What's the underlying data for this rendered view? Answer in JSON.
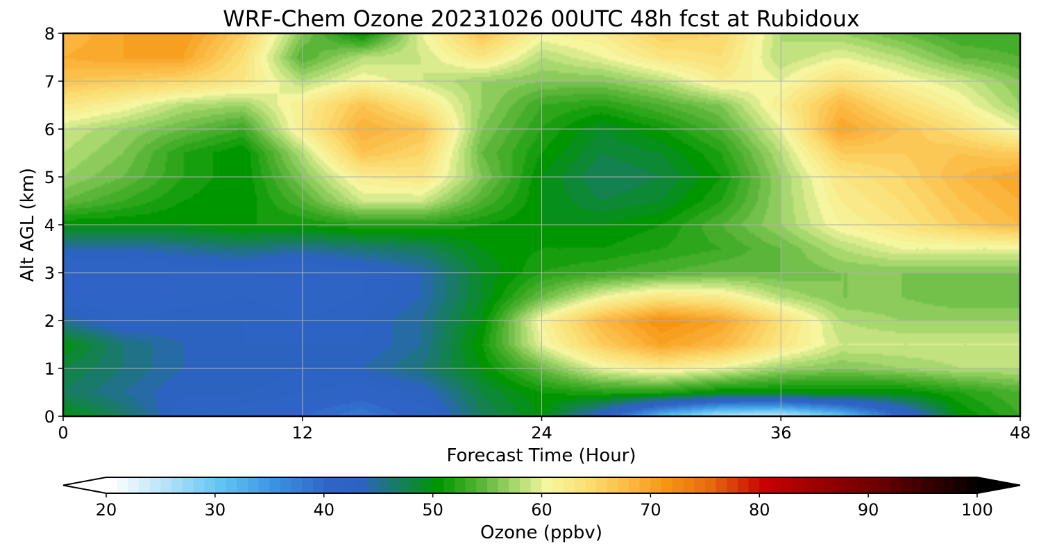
{
  "chart_data": {
    "type": "heatmap",
    "title": "WRF-Chem Ozone  20231026 00UTC 48h fcst at Rubidoux",
    "xlabel": "Forecast Time (Hour)",
    "ylabel": "Alt AGL (km)",
    "xlim": [
      0,
      48
    ],
    "ylim": [
      0,
      8
    ],
    "x_ticks": [
      0,
      12,
      24,
      36,
      48
    ],
    "y_ticks": [
      0,
      1,
      2,
      3,
      4,
      5,
      6,
      7,
      8
    ],
    "grid": true,
    "colorbar": {
      "label": "Ozone  (ppbv)",
      "min": 20,
      "max": 100,
      "ticks": [
        20,
        30,
        40,
        50,
        60,
        70,
        80,
        90,
        100
      ],
      "extend": "both",
      "colors": [
        {
          "value": 20,
          "color": "#ffffff"
        },
        {
          "value": 25,
          "color": "#b4e2f8"
        },
        {
          "value": 30,
          "color": "#63c4f4"
        },
        {
          "value": 35,
          "color": "#3c92e0"
        },
        {
          "value": 40,
          "color": "#2f64c6"
        },
        {
          "value": 43,
          "color": "#2c63c0"
        },
        {
          "value": 46,
          "color": "#1a7a6a"
        },
        {
          "value": 50,
          "color": "#009600"
        },
        {
          "value": 54,
          "color": "#5ab538"
        },
        {
          "value": 57,
          "color": "#a6d86e"
        },
        {
          "value": 60,
          "color": "#f6f6a0"
        },
        {
          "value": 64,
          "color": "#fbdc70"
        },
        {
          "value": 68,
          "color": "#fbb43c"
        },
        {
          "value": 71,
          "color": "#f59510"
        },
        {
          "value": 75,
          "color": "#e66a10"
        },
        {
          "value": 80,
          "color": "#c80000"
        },
        {
          "value": 90,
          "color": "#6e0000"
        },
        {
          "value": 100,
          "color": "#000000"
        }
      ]
    },
    "x": [
      0,
      3,
      6,
      9,
      12,
      15,
      18,
      21,
      24,
      27,
      30,
      33,
      36,
      39,
      42,
      45,
      48
    ],
    "y": [
      0,
      0.5,
      1,
      1.5,
      2,
      2.5,
      3,
      3.5,
      4,
      4.5,
      5,
      5.5,
      6,
      6.5,
      7,
      7.5,
      8
    ],
    "values": [
      [
        50,
        47,
        42,
        41,
        40,
        38,
        41,
        47,
        50,
        42,
        31,
        25,
        24,
        30,
        40,
        50,
        53
      ],
      [
        47,
        45,
        43,
        43,
        42,
        41,
        43,
        48,
        51,
        52,
        52,
        50,
        50,
        50,
        50,
        52,
        54
      ],
      [
        48,
        46,
        44,
        44,
        43,
        44,
        46,
        50,
        55,
        60,
        62,
        60,
        57,
        56,
        57,
        58,
        58
      ],
      [
        50,
        46,
        44,
        43,
        43,
        43,
        45,
        51,
        60,
        66,
        70,
        68,
        63,
        59,
        59,
        59,
        59
      ],
      [
        45,
        42,
        43,
        43,
        42,
        43,
        45,
        50,
        61,
        68,
        72,
        70,
        64,
        58,
        57,
        57,
        57
      ],
      [
        41,
        40,
        41,
        42,
        41,
        42,
        44,
        49,
        55,
        60,
        63,
        62,
        58,
        56,
        56,
        55,
        55
      ],
      [
        40,
        40,
        41,
        41,
        40,
        42,
        44,
        49,
        52,
        53,
        54,
        55,
        55,
        56,
        56,
        56,
        56
      ],
      [
        44,
        44,
        45,
        46,
        45,
        46,
        47,
        50,
        51,
        51,
        52,
        53,
        55,
        58,
        60,
        60,
        60
      ],
      [
        50,
        50,
        50,
        51,
        51,
        52,
        52,
        51,
        50,
        50,
        51,
        54,
        57,
        61,
        63,
        66,
        68
      ],
      [
        55,
        53,
        51,
        50,
        54,
        59,
        59,
        54,
        50,
        48,
        49,
        52,
        57,
        62,
        64,
        67,
        69
      ],
      [
        57,
        55,
        52,
        50,
        56,
        62,
        63,
        56,
        50,
        47,
        48,
        51,
        57,
        63,
        65,
        68,
        70
      ],
      [
        58,
        56,
        52,
        50,
        58,
        67,
        65,
        55,
        51,
        48,
        49,
        52,
        58,
        66,
        66,
        67,
        66
      ],
      [
        59,
        57,
        55,
        53,
        62,
        69,
        67,
        56,
        52,
        49,
        51,
        54,
        60,
        70,
        67,
        64,
        60
      ],
      [
        63,
        61,
        58,
        57,
        62,
        67,
        63,
        57,
        53,
        52,
        54,
        56,
        62,
        68,
        64,
        61,
        57
      ],
      [
        67,
        66,
        65,
        63,
        58,
        61,
        59,
        57,
        56,
        56,
        58,
        62,
        60,
        64,
        61,
        59,
        56
      ],
      [
        69,
        70,
        70,
        64,
        54,
        58,
        59,
        63,
        58,
        60,
        63,
        64,
        58,
        60,
        58,
        55,
        54
      ],
      [
        68,
        70,
        71,
        66,
        56,
        50,
        60,
        67,
        61,
        62,
        66,
        65,
        58,
        57,
        55,
        53,
        53
      ]
    ]
  }
}
